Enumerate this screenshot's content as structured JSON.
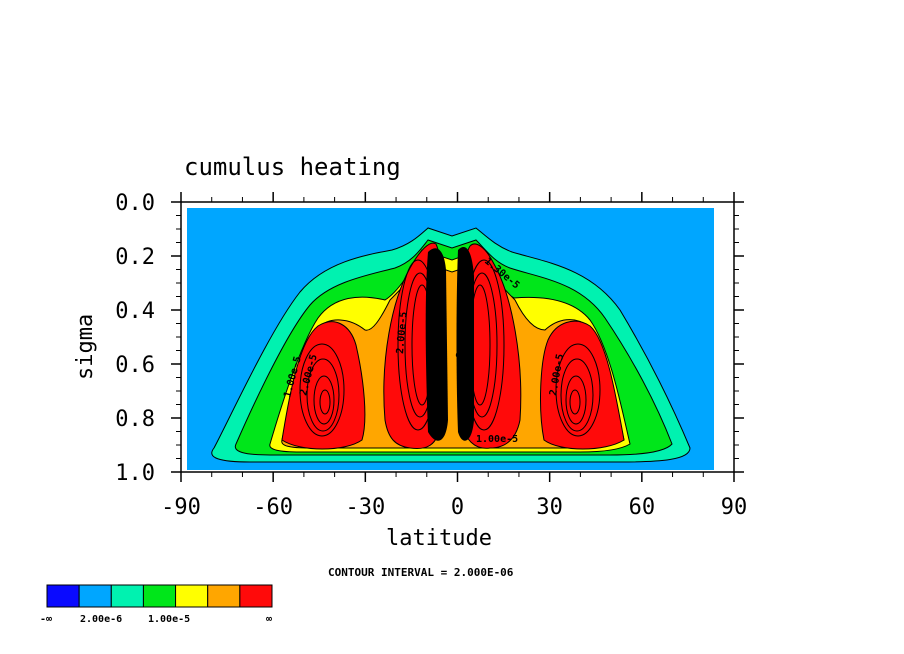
{
  "chart_data": {
    "type": "heatmap",
    "title": "cumulus heating",
    "xlabel": "latitude",
    "ylabel": "sigma",
    "xlim": [
      -90,
      90
    ],
    "ylim": [
      0.0,
      1.0
    ],
    "y_reversed": true,
    "x_ticks": [
      "-90",
      "-60",
      "-30",
      "0",
      "30",
      "60",
      "90"
    ],
    "y_ticks": [
      "0.0",
      "0.2",
      "0.4",
      "0.6",
      "0.8",
      "1.0"
    ],
    "contour_interval_text": "CONTOUR INTERVAL = 2.000E-06",
    "contour_labels": [
      "1.00e-5",
      "2.00e-5",
      "1.30e-5",
      "2.00e-5",
      "2.00e-5",
      "2.00e-5",
      "1.00e-5"
    ],
    "colorbar": {
      "colors": [
        "#0a0aff",
        "#00a6ff",
        "#00f2b0",
        "#00e61a",
        "#ffff00",
        "#ffa600",
        "#ff0a0a"
      ],
      "labels": [
        "-∞",
        "2.00e-6",
        "1.00e-5",
        "∞"
      ]
    },
    "regions": {
      "domain_fill": "#00a6ff",
      "outer_bands": [
        "#00f2b0",
        "#00e61a",
        "#ffff00",
        "#ffa600",
        "#ff0a0a"
      ],
      "maxima": [
        {
          "lat": -40,
          "sigma": 0.72,
          "label": "2.00e-5"
        },
        {
          "lat": -12,
          "sigma": 0.55,
          "label": "2.00e-5"
        },
        {
          "lat": 12,
          "sigma": 0.52,
          "label": "2.00e-5"
        },
        {
          "lat": 42,
          "sigma": 0.72,
          "label": "2.00e-5"
        }
      ]
    }
  }
}
